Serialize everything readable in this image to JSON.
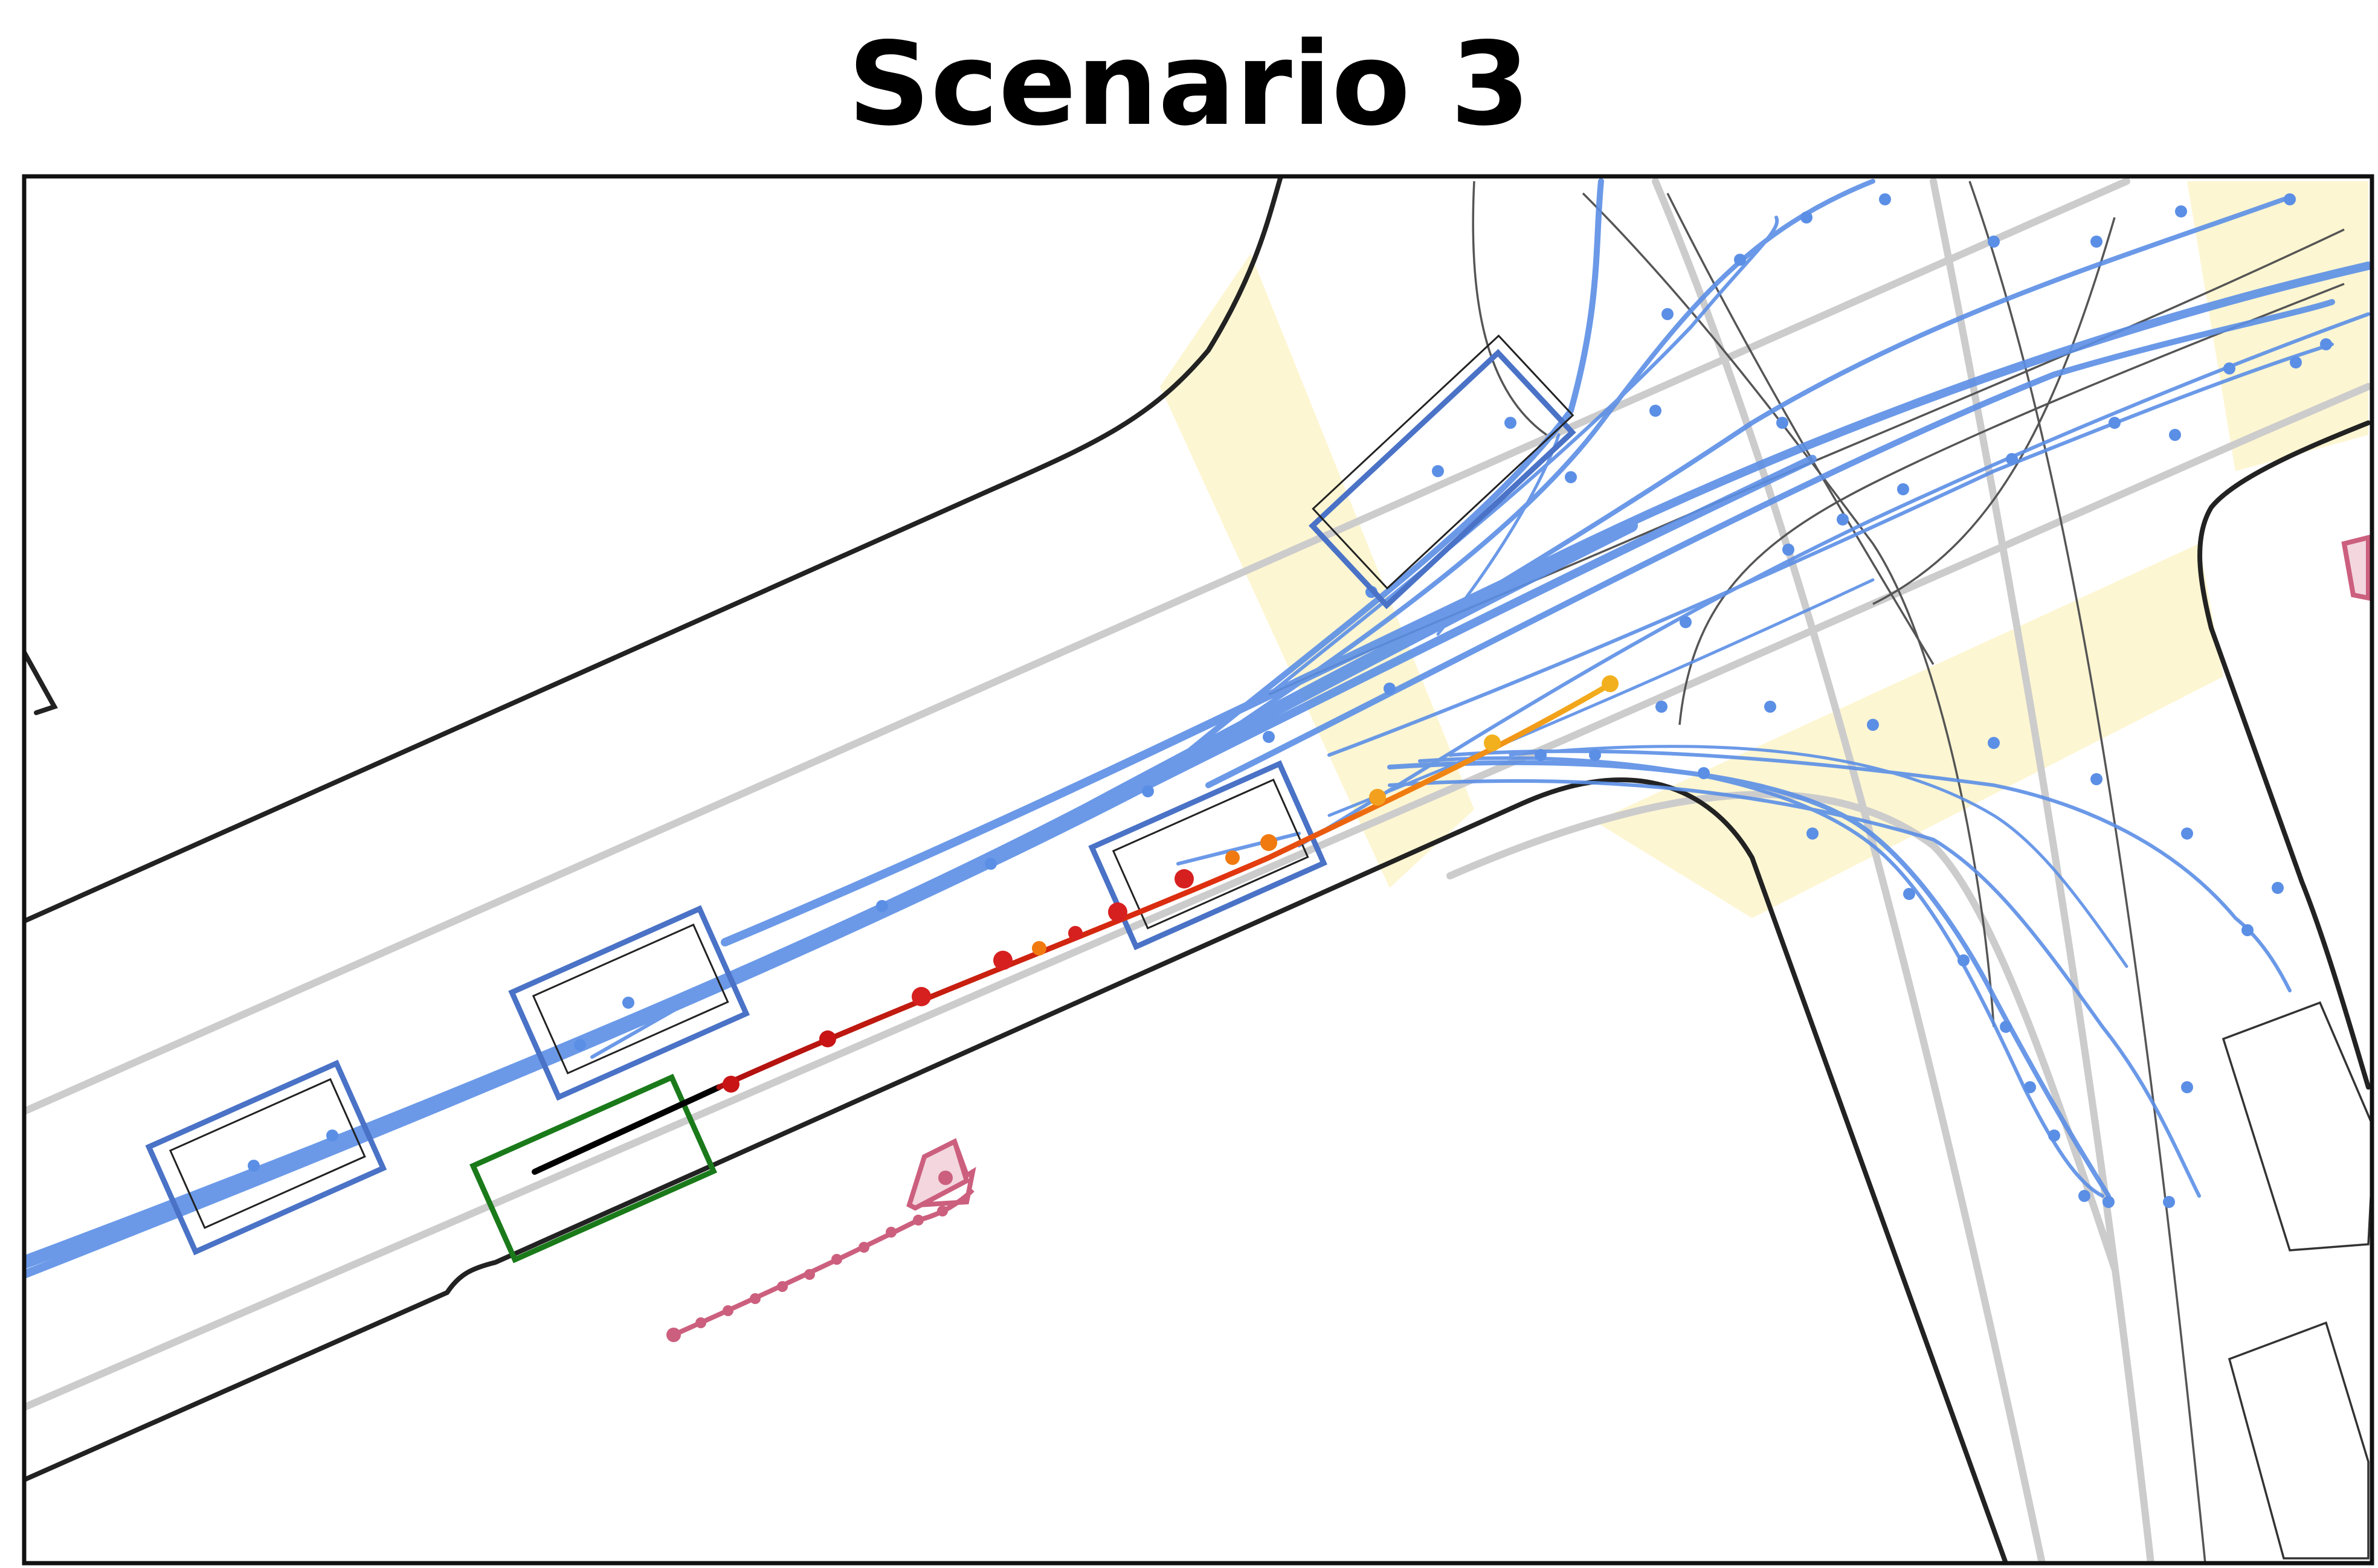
{
  "title": "Scenario 3",
  "colors": {
    "background": "#ffffff",
    "frame": "#111111",
    "road_edge": "#222222",
    "lane_centerline": "#c8c8c8",
    "thin_lane": "#555555",
    "crosswalk": "#fdf6d2",
    "agent_trajectory": "#5b8fe6",
    "agent_box": "#4a72c6",
    "ego_box": "#1a7a1a",
    "ego_history": "#000000",
    "ego_prediction_start": "#d11b1b",
    "ego_prediction_end": "#f2b01e",
    "pedestrian": "#cc5f7e",
    "static_box": "#333333"
  },
  "legend": {
    "agent-icon": "blue boxes with multi-modal predicted trajectories",
    "ego-icon": "green box with predicted trajectory (red to orange)",
    "pedestrian-icon": "pink pedestrian with trajectory"
  }
}
